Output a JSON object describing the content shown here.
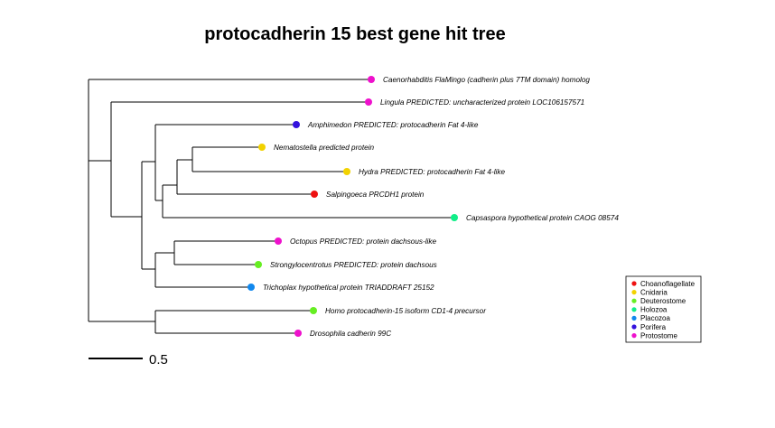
{
  "title": "protocadherin 15 best gene hit tree",
  "scale_bar": {
    "label": "0.5"
  },
  "legend": {
    "items": [
      {
        "label": "Choanoflagellate",
        "color": "#ee1111"
      },
      {
        "label": "Cnidaria",
        "color": "#f2d200"
      },
      {
        "label": "Deuterostome",
        "color": "#66ee22"
      },
      {
        "label": "Holozoa",
        "color": "#11ee88"
      },
      {
        "label": "Placozoa",
        "color": "#1188ee"
      },
      {
        "label": "Porifera",
        "color": "#3311dd"
      },
      {
        "label": "Protostome",
        "color": "#ee11cc"
      }
    ]
  },
  "leaves": [
    {
      "species": "Caenorhabditis",
      "description": "FlaMingo (cadherin plus 7TM domain) homolog",
      "group": "Protostome"
    },
    {
      "species": "Lingula",
      "description": "PREDICTED: uncharacterized protein LOC106157571",
      "group": "Protostome"
    },
    {
      "species": "Amphimedon",
      "description": "PREDICTED: protocadherin Fat 4-like",
      "group": "Porifera"
    },
    {
      "species": "Nematostella",
      "description": "predicted protein",
      "group": "Cnidaria"
    },
    {
      "species": "Hydra",
      "description": "PREDICTED: protocadherin Fat 4-like",
      "group": "Cnidaria"
    },
    {
      "species": "Salpingoeca",
      "description": "PRCDH1 protein",
      "group": "Choanoflagellate"
    },
    {
      "species": "Capsaspora",
      "description": "hypothetical protein CAOG 08574",
      "group": "Holozoa"
    },
    {
      "species": "Octopus",
      "description": "PREDICTED: protein dachsous-like",
      "group": "Protostome"
    },
    {
      "species": "Strongylocentrotus",
      "description": "PREDICTED: protein dachsous",
      "group": "Deuterostome"
    },
    {
      "species": "Trichoplax",
      "description": "hypothetical protein TRIADDRAFT 25152",
      "group": "Placozoa"
    },
    {
      "species": "Homo",
      "description": "protocadherin-15 isoform CD1-4 precursor",
      "group": "Deuterostome"
    },
    {
      "species": "Drosophila",
      "description": "cadherin 99C",
      "group": "Protostome"
    }
  ]
}
